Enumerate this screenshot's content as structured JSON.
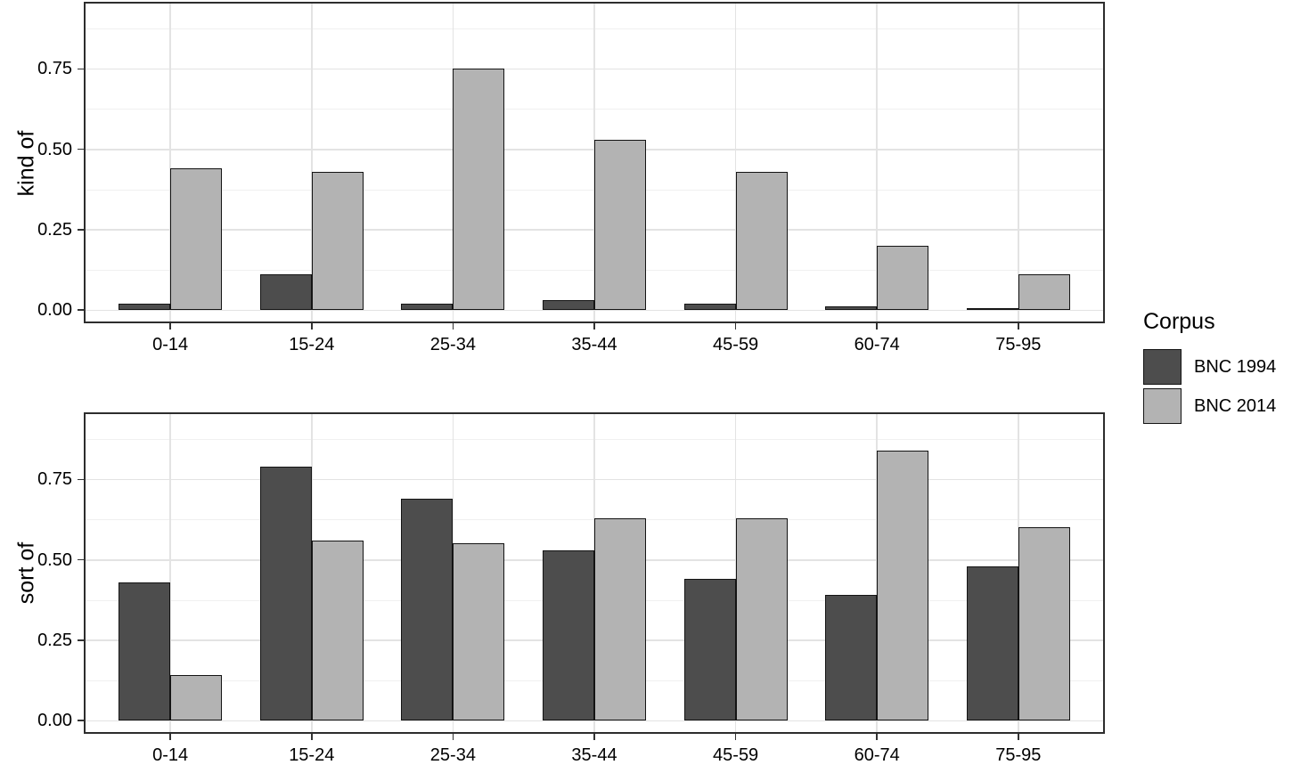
{
  "chart_data": {
    "type": "bar",
    "grouping": "dodged",
    "categories": [
      "0-14",
      "15-24",
      "25-34",
      "35-44",
      "45-59",
      "60-74",
      "75-95"
    ],
    "panels": [
      {
        "ylabel": "kind of",
        "series": [
          {
            "name": "BNC 1994",
            "color": "#4d4d4d",
            "values": [
              0.02,
              0.11,
              0.02,
              0.03,
              0.02,
              0.01,
              0.005
            ]
          },
          {
            "name": "BNC 2014",
            "color": "#b3b3b3",
            "values": [
              0.44,
              0.43,
              0.75,
              0.53,
              0.43,
              0.2,
              0.11
            ]
          }
        ]
      },
      {
        "ylabel": "sort of",
        "series": [
          {
            "name": "BNC 1994",
            "color": "#4d4d4d",
            "values": [
              0.43,
              0.79,
              0.69,
              0.53,
              0.44,
              0.39,
              0.48
            ]
          },
          {
            "name": "BNC 2014",
            "color": "#b3b3b3",
            "values": [
              0.14,
              0.56,
              0.55,
              0.63,
              0.63,
              0.84,
              0.6
            ]
          }
        ]
      }
    ],
    "y_axis": {
      "tick_labels": [
        "0.00",
        "0.25",
        "0.50",
        "0.75"
      ],
      "tick_values": [
        0,
        0.25,
        0.5,
        0.75
      ],
      "minor_values": [
        0.125,
        0.375,
        0.625,
        0.875
      ],
      "range": [
        0,
        0.96
      ],
      "grid": true
    },
    "legend": {
      "title": "Corpus",
      "position": "right",
      "entries": [
        {
          "label": "BNC 1994",
          "color": "#4d4d4d"
        },
        {
          "label": "BNC 2014",
          "color": "#b3b3b3"
        }
      ]
    }
  },
  "style_colors": {
    "bar_dark": "#4d4d4d",
    "bar_light": "#b3b3b3",
    "bar_border": "#141414",
    "panel_border": "#2d2d2d",
    "grid_major": "#e3e3e3",
    "grid_minor": "#f0f0f0",
    "axis_text": "#000000",
    "tick_mark": "#333333"
  }
}
